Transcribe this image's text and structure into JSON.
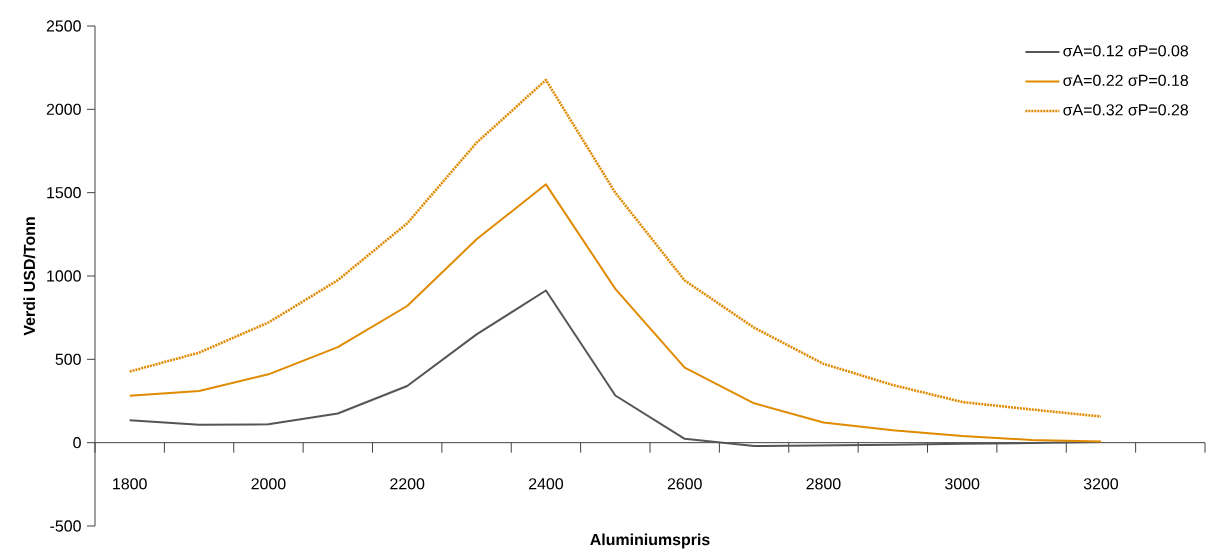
{
  "chart_data": {
    "type": "line",
    "xlabel": "Aluminiumspris",
    "ylabel": "Verdi USD/Tonn",
    "categories": [
      "1800",
      null,
      "2000",
      null,
      "2200",
      null,
      "2400",
      null,
      "2600",
      null,
      "2800",
      null,
      "3000",
      null,
      "3200",
      null
    ],
    "ylim": [
      -500,
      2500
    ],
    "yticks": [
      -500,
      0,
      500,
      1000,
      1500,
      2000,
      2500
    ],
    "legend": "top right",
    "series": [
      {
        "name": "σA=0.12 σP=0.08",
        "color": "#555555",
        "line_style": "solid",
        "values": [
          134,
          107,
          110,
          175,
          340,
          650,
          913,
          283,
          23,
          -20,
          -16,
          -12,
          -7,
          -2,
          4,
          null
        ]
      },
      {
        "name": "σA=0.22 σP=0.18",
        "color": "#e08a00",
        "line_style": "solid",
        "values": [
          282,
          310,
          410,
          573,
          820,
          1220,
          1550,
          923,
          450,
          236,
          121,
          74,
          40,
          16,
          7,
          null
        ]
      },
      {
        "name": "σA=0.32 σP=0.28",
        "color": "#e08a00",
        "line_style": "dotted",
        "values": [
          427,
          540,
          721,
          975,
          1316,
          1800,
          2176,
          1500,
          973,
          690,
          473,
          346,
          244,
          199,
          157,
          null
        ]
      }
    ]
  }
}
